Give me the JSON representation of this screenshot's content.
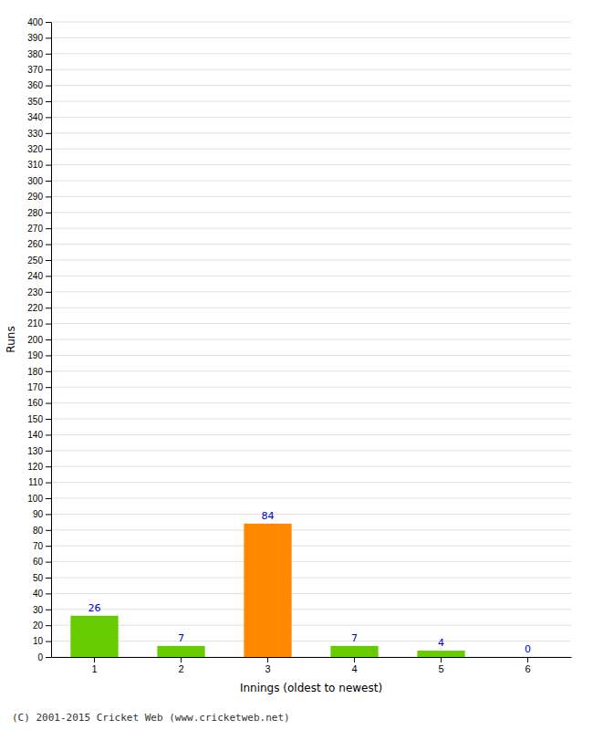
{
  "chart_data": {
    "type": "bar",
    "categories": [
      "1",
      "2",
      "3",
      "4",
      "5",
      "6"
    ],
    "values": [
      26,
      7,
      84,
      7,
      4,
      0
    ],
    "colors": [
      "#66cc00",
      "#66cc00",
      "#ff8800",
      "#66cc00",
      "#66cc00",
      "#66cc00"
    ],
    "xlabel": "Innings (oldest to newest)",
    "ylabel": "Runs",
    "ylim": [
      0,
      400
    ],
    "yticks": [
      0,
      10,
      20,
      30,
      40,
      50,
      60,
      70,
      80,
      90,
      100,
      110,
      120,
      130,
      140,
      150,
      160,
      170,
      180,
      190,
      200,
      210,
      220,
      230,
      240,
      250,
      260,
      270,
      280,
      290,
      300,
      310,
      320,
      330,
      340,
      350,
      360,
      370,
      380,
      390,
      400
    ],
    "grid": true,
    "data_labels": true,
    "annotations": [
      "(C) 2001-2015 Cricket Web (www.cricketweb.net)"
    ]
  }
}
